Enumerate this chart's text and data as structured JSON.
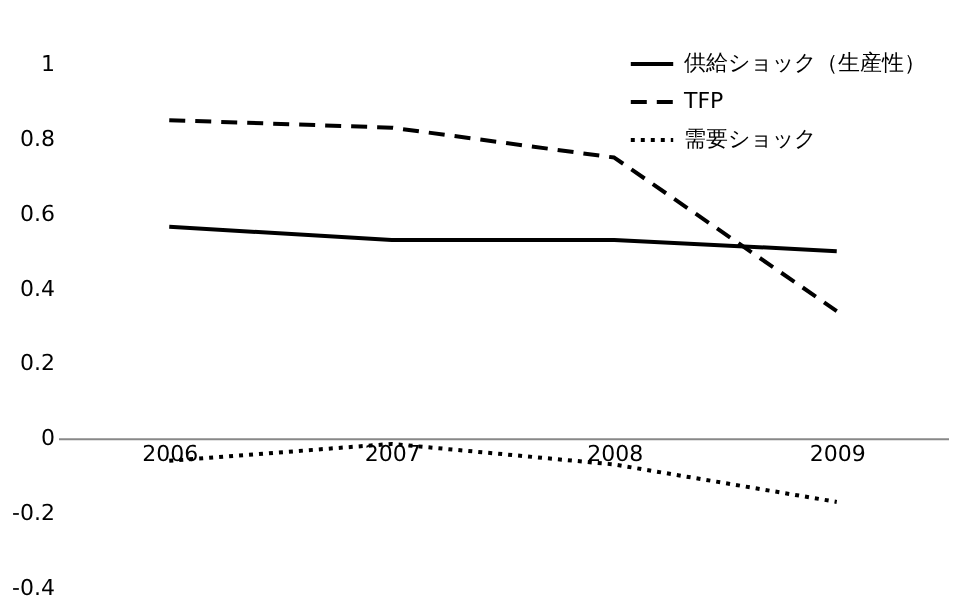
{
  "chart_data": {
    "type": "line",
    "categories": [
      "2006",
      "2007",
      "2008",
      "2009"
    ],
    "series": [
      {
        "name": "供給ショック（生産性）",
        "color": "#000000",
        "line_style": "solid",
        "values": [
          0.565,
          0.53,
          0.53,
          0.5
        ]
      },
      {
        "name": "TFP",
        "color": "#000000",
        "line_style": "dashed",
        "values": [
          0.85,
          0.83,
          0.75,
          0.34
        ]
      },
      {
        "name": "需要ショック",
        "color": "#000000",
        "line_style": "dotted",
        "values": [
          -0.06,
          -0.015,
          -0.07,
          -0.17
        ]
      }
    ],
    "ylim": [
      -0.4,
      1
    ],
    "yticks": [
      -0.4,
      -0.2,
      0,
      0.2,
      0.4,
      0.6,
      0.8,
      1
    ],
    "grid": false,
    "legend": "top right",
    "marker": "none"
  }
}
